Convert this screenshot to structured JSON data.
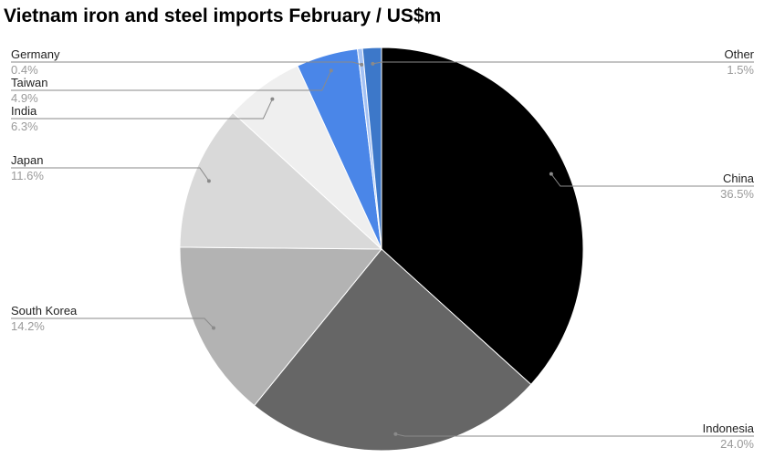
{
  "chart_data": {
    "type": "pie",
    "title": "Vietnam iron and steel imports February / US$m",
    "slices": [
      {
        "name": "China",
        "value": 36.5,
        "label": "36.5%",
        "color": "#000000"
      },
      {
        "name": "Indonesia",
        "value": 24.0,
        "label": "24.0%",
        "color": "#666666"
      },
      {
        "name": "South Korea",
        "value": 14.2,
        "label": "14.2%",
        "color": "#b3b3b3"
      },
      {
        "name": "Japan",
        "value": 11.6,
        "label": "11.6%",
        "color": "#d9d9d9"
      },
      {
        "name": "India",
        "value": 6.3,
        "label": "6.3%",
        "color": "#efefef"
      },
      {
        "name": "Taiwan",
        "value": 4.9,
        "label": "4.9%",
        "color": "#4a86e8"
      },
      {
        "name": "Germany",
        "value": 0.4,
        "label": "0.4%",
        "color": "#a4c2f4"
      },
      {
        "name": "Other",
        "value": 1.5,
        "label": "1.5%",
        "color": "#3d78c9"
      }
    ],
    "start_angle": "12 o'clock",
    "direction": "clockwise",
    "legend": "none",
    "label_style": "callout lines with name and percentage"
  }
}
